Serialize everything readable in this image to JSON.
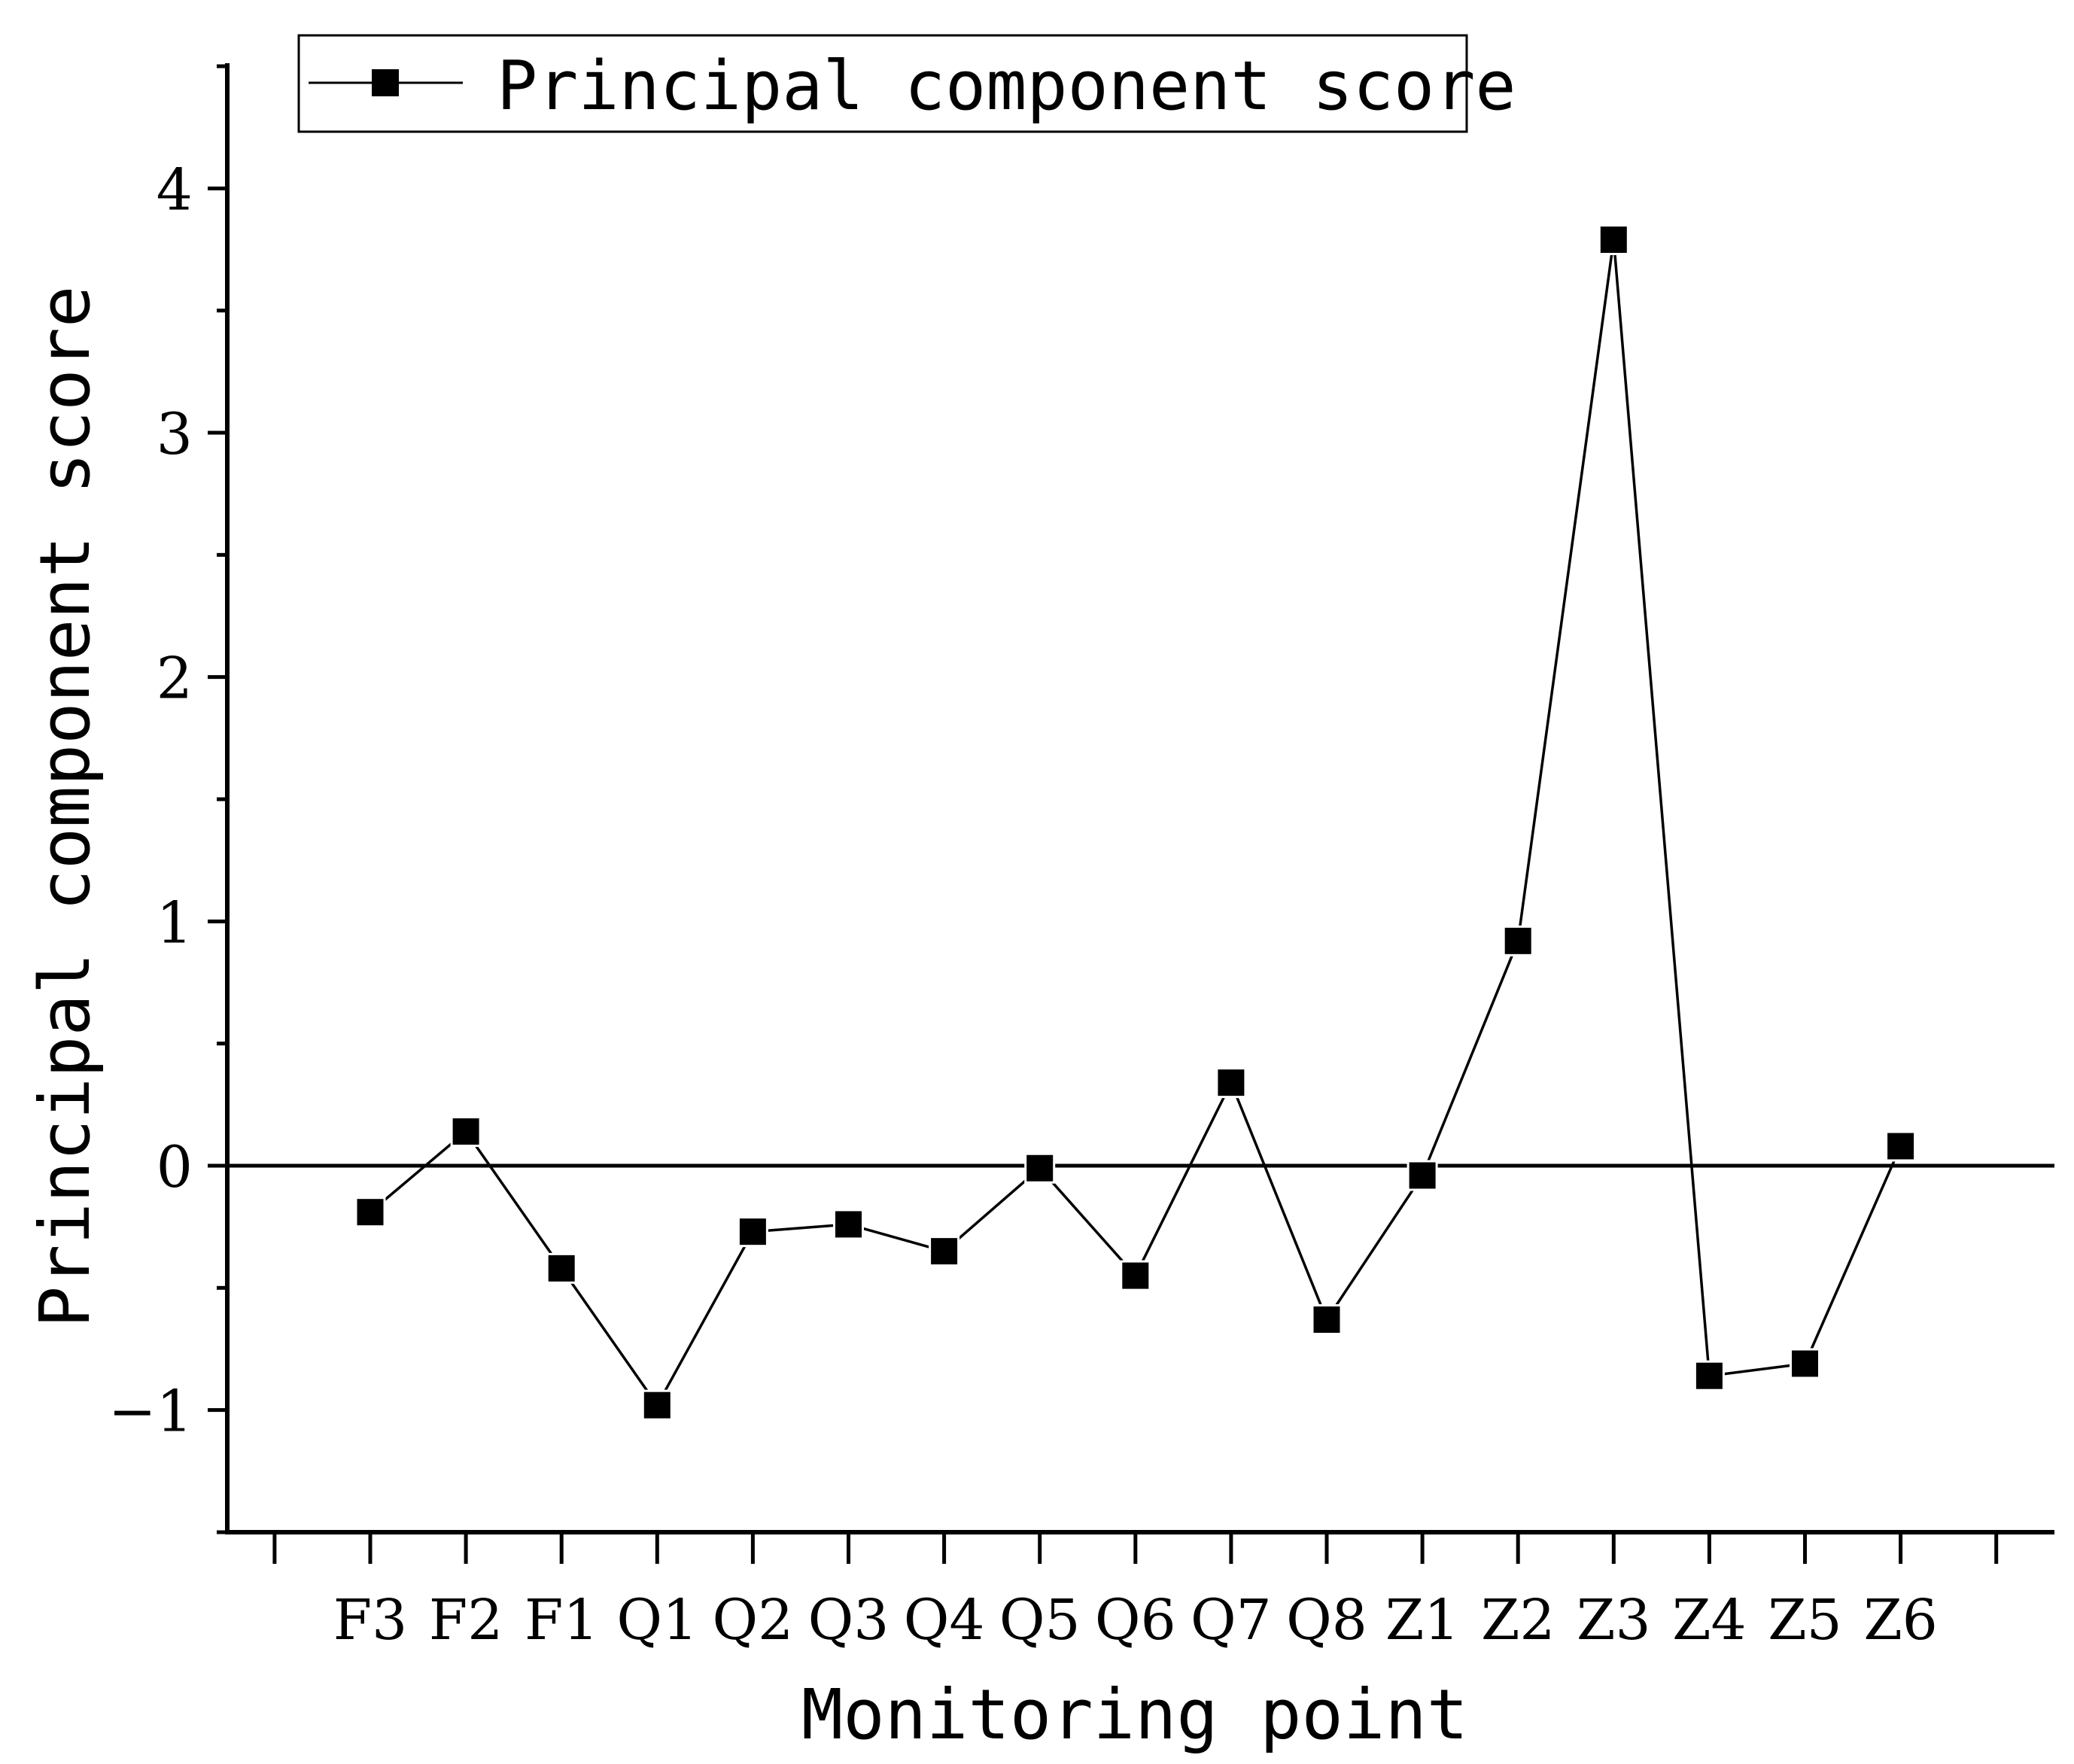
{
  "chart_data": {
    "type": "line",
    "xlabel": "Monitoring point",
    "ylabel": "Principal component score",
    "categories": [
      "F3",
      "F2",
      "F1",
      "Q1",
      "Q2",
      "Q3",
      "Q4",
      "Q5",
      "Q6",
      "Q7",
      "Q8",
      "Z1",
      "Z2",
      "Z3",
      "Z4",
      "Z5",
      "Z6"
    ],
    "series": [
      {
        "name": "Principal component score",
        "values": [
          -0.19,
          0.14,
          -0.42,
          -0.98,
          -0.27,
          -0.24,
          -0.35,
          -0.01,
          -0.45,
          0.34,
          -0.63,
          -0.04,
          0.92,
          3.79,
          -0.86,
          -0.81,
          0.08
        ]
      }
    ],
    "ylim": [
      -1.5,
      4.5
    ],
    "yticks": [
      -1,
      0,
      1,
      2,
      3,
      4
    ],
    "ytick_labels": [
      "−1",
      "0",
      "1",
      "2",
      "3",
      "4"
    ],
    "reference_line_y": 0,
    "grid": false,
    "legend": {
      "position": "top-left",
      "marker": "square"
    },
    "colors": {
      "line": "#000000",
      "marker": "#000000",
      "background": "#ffffff"
    }
  }
}
